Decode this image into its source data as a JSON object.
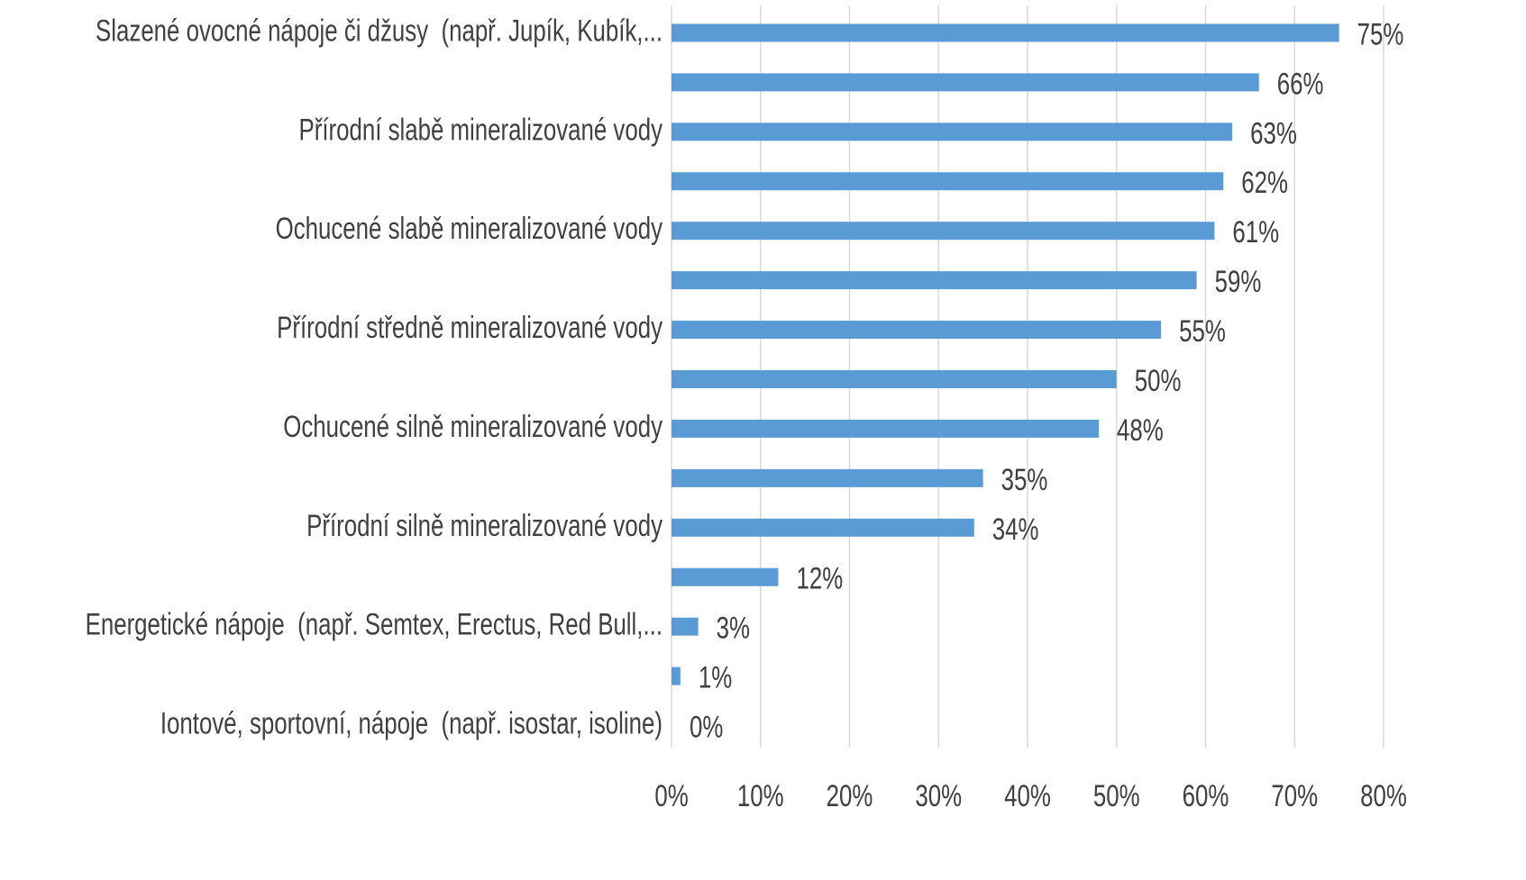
{
  "chart_data": {
    "type": "bar",
    "orientation": "horizontal",
    "categories": [
      "Slazené ovocné nápoje či džusy  (např. Jupík, Kubík,...",
      null,
      "Přírodní slabě mineralizované vody",
      null,
      "Ochucené slabě mineralizované vody",
      null,
      "Přírodní středně mineralizované vody",
      null,
      "Ochucené silně mineralizované vody",
      null,
      "Přírodní silně mineralizované vody",
      null,
      "Energetické nápoje  (např. Semtex, Erectus, Red Bull,...",
      null,
      "Iontové, sportovní, nápoje  (např. isostar, isoline)"
    ],
    "values": [
      75,
      66,
      63,
      62,
      61,
      59,
      55,
      50,
      48,
      35,
      34,
      12,
      3,
      1,
      0
    ],
    "value_labels": [
      "75%",
      "66%",
      "63%",
      "62%",
      "61%",
      "59%",
      "55%",
      "50%",
      "48%",
      "35%",
      "34%",
      "12%",
      "3%",
      "1%",
      "0%"
    ],
    "color": "#5b9bd5",
    "xlim": [
      0,
      80
    ],
    "xticks": [
      {
        "value": 0,
        "label": "0%"
      },
      {
        "value": 10,
        "label": "10%"
      },
      {
        "value": 20,
        "label": "20%"
      },
      {
        "value": 30,
        "label": "30%"
      },
      {
        "value": 40,
        "label": "40%"
      },
      {
        "value": 50,
        "label": "50%"
      },
      {
        "value": 60,
        "label": "60%"
      },
      {
        "value": 70,
        "label": "70%"
      },
      {
        "value": 80,
        "label": "80%"
      }
    ],
    "grid": true
  }
}
